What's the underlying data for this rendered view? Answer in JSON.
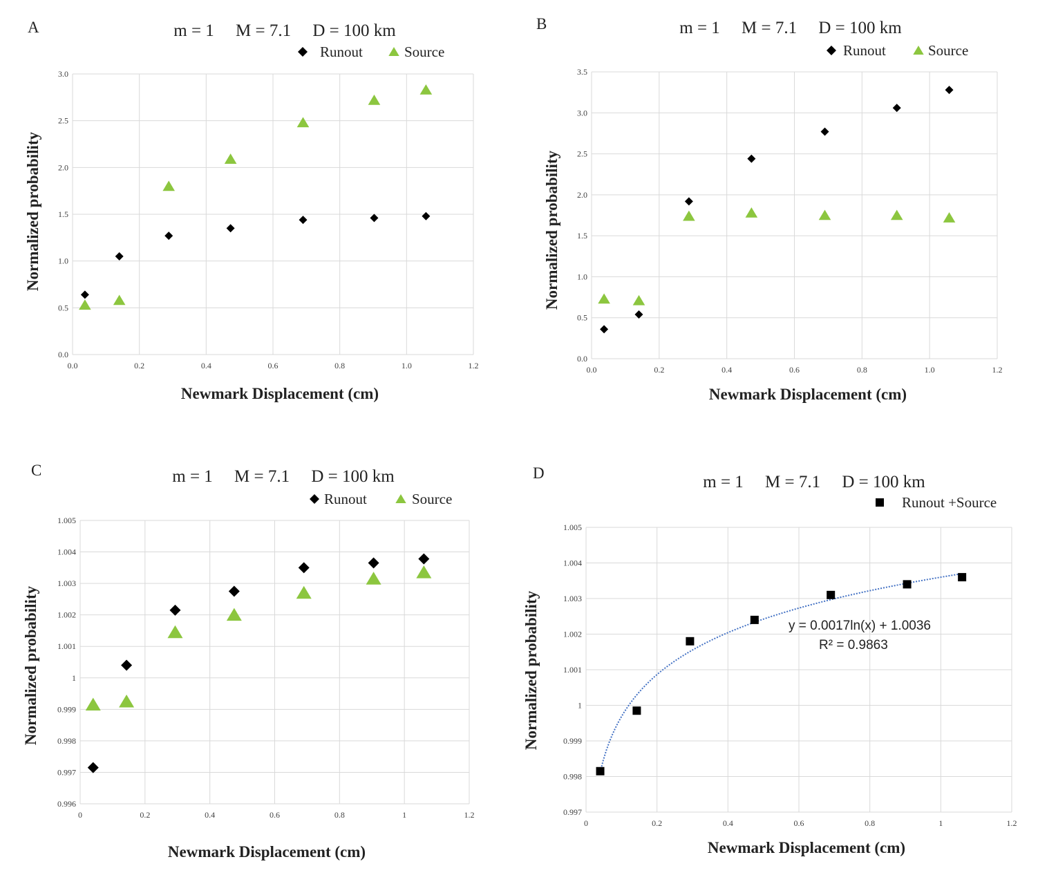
{
  "chart_data": [
    {
      "panel": "A",
      "type": "scatter",
      "title": "m = 1     M = 7.1     D = 100 km",
      "xlabel": "Newmark Displacement (cm)",
      "ylabel": "Normalized probability",
      "xlim": [
        0,
        1.2
      ],
      "ylim": [
        0,
        3.0
      ],
      "xticks": [
        "0.0",
        "0.2",
        "0.4",
        "0.6",
        "0.8",
        "1.0",
        "1.2"
      ],
      "yticks": [
        "0.0",
        "0.5",
        "1.0",
        "1.5",
        "2.0",
        "2.5",
        "3.0"
      ],
      "x": [
        0.037,
        0.14,
        0.288,
        0.473,
        0.69,
        0.903,
        1.058
      ],
      "series": [
        {
          "name": "Runout",
          "marker": "diamond",
          "color": "#000000",
          "values": [
            0.64,
            1.05,
            1.27,
            1.35,
            1.44,
            1.46,
            1.48
          ]
        },
        {
          "name": "Source",
          "marker": "triangle",
          "color": "#8cc63f",
          "values": [
            0.53,
            0.58,
            1.8,
            2.09,
            2.48,
            2.72,
            2.83
          ]
        }
      ]
    },
    {
      "panel": "B",
      "type": "scatter",
      "title": "m = 1     M = 7.1     D = 100 km",
      "xlabel": "Newmark Displacement (cm)",
      "ylabel": "Normalized probability",
      "xlim": [
        0,
        1.2
      ],
      "ylim": [
        0,
        3.5
      ],
      "xticks": [
        "0.0",
        "0.2",
        "0.4",
        "0.6",
        "0.8",
        "1.0",
        "1.2"
      ],
      "yticks": [
        "0.0",
        "0.5",
        "1.0",
        "1.5",
        "2.0",
        "2.5",
        "3.0",
        "3.5"
      ],
      "x": [
        0.037,
        0.14,
        0.288,
        0.473,
        0.69,
        0.903,
        1.058
      ],
      "series": [
        {
          "name": "Runout",
          "marker": "diamond",
          "color": "#000000",
          "values": [
            0.36,
            0.54,
            1.92,
            2.44,
            2.77,
            3.06,
            3.28
          ]
        },
        {
          "name": "Source",
          "marker": "triangle",
          "color": "#8cc63f",
          "values": [
            0.73,
            0.71,
            1.74,
            1.78,
            1.75,
            1.75,
            1.72
          ]
        }
      ]
    },
    {
      "panel": "C",
      "type": "scatter",
      "title": "m = 1     M = 7.1     D = 100 km",
      "xlabel": "Newmark Displacement (cm)",
      "ylabel": "Normalized probability",
      "xlim": [
        0,
        1.2
      ],
      "ylim": [
        0.996,
        1.005
      ],
      "xticks": [
        "0",
        "0.2",
        "0.4",
        "0.6",
        "0.8",
        "1",
        "1.2"
      ],
      "yticks": [
        "0.996",
        "0.997",
        "0.998",
        "0.999",
        "1",
        "1.001",
        "1.002",
        "1.003",
        "1.004",
        "1.005"
      ],
      "x": [
        0.04,
        0.143,
        0.293,
        0.475,
        0.69,
        0.905,
        1.06
      ],
      "series": [
        {
          "name": "Runout",
          "marker": "diamond",
          "color": "#000000",
          "values": [
            0.99715,
            1.0004,
            1.00215,
            1.00275,
            1.0035,
            1.00365,
            1.00378
          ]
        },
        {
          "name": "Source",
          "marker": "triangle",
          "color": "#8cc63f",
          "values": [
            0.99915,
            0.99925,
            1.00145,
            1.002,
            1.0027,
            1.00315,
            1.00335
          ]
        }
      ]
    },
    {
      "panel": "D",
      "type": "scatter",
      "title": "m = 1     M = 7.1     D = 100 km",
      "xlabel": "Newmark Displacement (cm)",
      "ylabel": "Normalized probability",
      "xlim": [
        0,
        1.2
      ],
      "ylim": [
        0.997,
        1.005
      ],
      "xticks": [
        "0",
        "0.2",
        "0.4",
        "0.6",
        "0.8",
        "1",
        "1.2"
      ],
      "yticks": [
        "0.997",
        "0.998",
        "0.999",
        "1",
        "1.001",
        "1.002",
        "1.003",
        "1.004",
        "1.005"
      ],
      "x": [
        0.04,
        0.143,
        0.293,
        0.475,
        0.69,
        0.905,
        1.06
      ],
      "series": [
        {
          "name": "Runout +Source",
          "marker": "square",
          "color": "#000000",
          "values": [
            0.99815,
            0.99985,
            1.0018,
            1.0024,
            1.0031,
            1.0034,
            1.0036
          ]
        }
      ],
      "trendline": {
        "type": "logarithmic",
        "a": 0.0017,
        "b": 1.0036,
        "color": "#4472c4"
      },
      "equation": "y = 0.0017ln(x) + 1.0036",
      "r_squared": "R² = 0.9863"
    }
  ],
  "panel_labels": [
    "A",
    "B",
    "C",
    "D"
  ]
}
